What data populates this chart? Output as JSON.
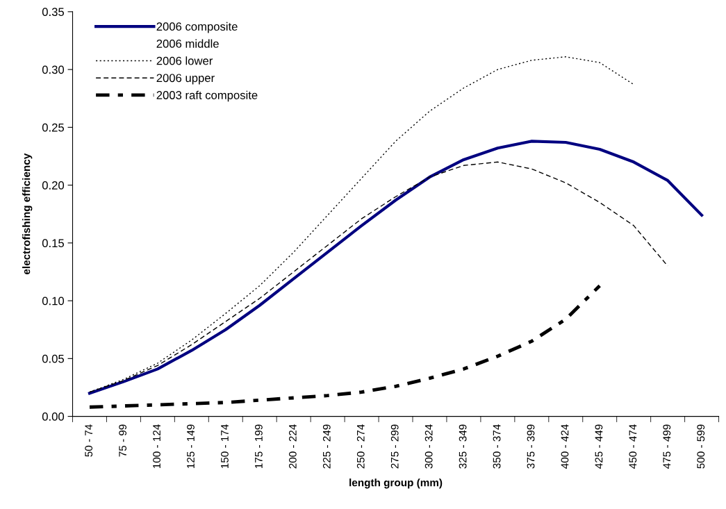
{
  "chart_data": {
    "type": "line",
    "xlabel": "length group (mm)",
    "ylabel": "electrofishing efficiency",
    "categories": [
      "50 - 74",
      "75 - 99",
      "100 - 124",
      "125 - 149",
      "150 - 174",
      "175 - 199",
      "200 - 224",
      "225 - 249",
      "250 - 274",
      "275 - 299",
      "300 - 324",
      "325 - 349",
      "350 - 374",
      "375 - 399",
      "400 - 424",
      "425 - 449",
      "450 - 474",
      "475 - 499",
      "500 - 599"
    ],
    "ylim": [
      0,
      0.35
    ],
    "yticks": [
      {
        "value": 0,
        "label": "0.00"
      },
      {
        "value": 0.05,
        "label": "0.05"
      },
      {
        "value": 0.1,
        "label": "0.10"
      },
      {
        "value": 0.15,
        "label": "0.15"
      },
      {
        "value": 0.2,
        "label": "0.20"
      },
      {
        "value": 0.25,
        "label": "0.25"
      },
      {
        "value": 0.3,
        "label": "0.30"
      },
      {
        "value": 0.35,
        "label": "0.35"
      }
    ],
    "grid": false,
    "legend": "top left",
    "marker": "none",
    "series": [
      {
        "name": "2006 composite",
        "color": "#000080",
        "line_style": "solid",
        "values": [
          0.02,
          0.03,
          0.041,
          0.057,
          0.075,
          0.096,
          0.119,
          0.142,
          0.165,
          0.187,
          0.207,
          0.222,
          0.232,
          0.238,
          0.237,
          0.231,
          0.22,
          0.204,
          0.174
        ]
      },
      {
        "name": "2006 middle",
        "values": [
          null,
          null,
          null,
          null,
          null,
          null,
          null,
          null,
          null,
          null,
          null,
          null,
          null,
          null,
          null,
          null,
          null,
          null,
          null
        ]
      },
      {
        "name": "2006 lower",
        "color": "#000000",
        "line_style": "dotted",
        "values": [
          0.021,
          0.032,
          0.046,
          0.066,
          0.089,
          0.113,
          0.142,
          0.174,
          0.206,
          0.238,
          0.264,
          0.284,
          0.3,
          0.308,
          0.311,
          0.306,
          0.287,
          null,
          null
        ]
      },
      {
        "name": "2006 upper",
        "color": "#000000",
        "line_style": "dashed",
        "values": [
          0.021,
          0.031,
          0.044,
          0.062,
          0.082,
          0.102,
          0.125,
          0.148,
          0.171,
          0.19,
          0.207,
          0.217,
          0.22,
          0.214,
          0.202,
          0.185,
          0.165,
          0.13,
          null
        ]
      },
      {
        "name": "2003 raft composite",
        "color": "#000000",
        "line_style": "dashed",
        "values": [
          0.008,
          0.009,
          0.01,
          0.011,
          0.012,
          0.014,
          0.016,
          0.018,
          0.021,
          0.026,
          0.033,
          0.041,
          0.052,
          0.065,
          0.084,
          0.113,
          null,
          null,
          null
        ]
      }
    ]
  }
}
